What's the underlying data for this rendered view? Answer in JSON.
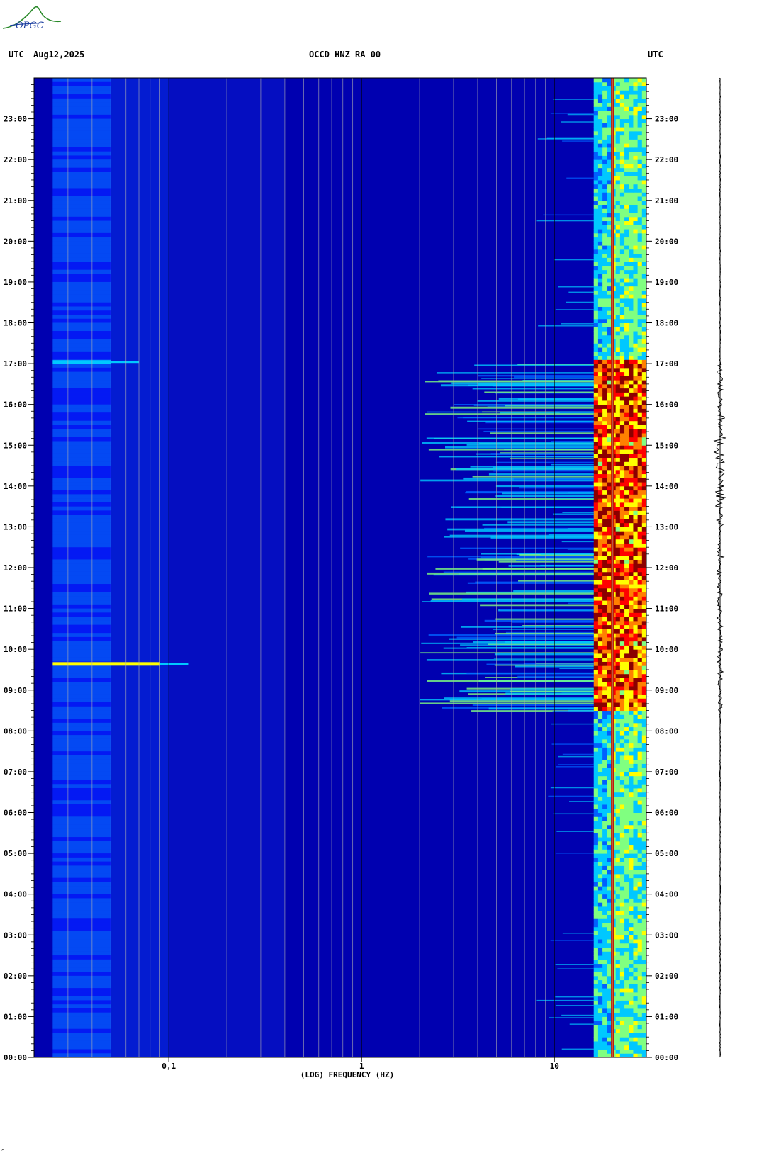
{
  "logo_text": "OPGC",
  "header": {
    "left_tz": "UTC",
    "date": "Aug12,2025",
    "station": "OCCD HNZ RA 00",
    "right_tz": "UTC"
  },
  "corner_mark": "^",
  "chart_data": {
    "type": "heatmap",
    "title": "OCCD HNZ RA 00",
    "xlabel": "(LOG) FREQUENCY (HZ)",
    "ylabel": "UTC",
    "x_scale": "log",
    "xlim": [
      0.02,
      30
    ],
    "x_ticks": [
      {
        "value": 0.1,
        "label": "0,1"
      },
      {
        "value": 1,
        "label": "1"
      },
      {
        "value": 10,
        "label": "10"
      }
    ],
    "x_minor_gridlines": [
      0.02,
      0.03,
      0.04,
      0.05,
      0.06,
      0.07,
      0.08,
      0.09,
      0.2,
      0.3,
      0.4,
      0.5,
      0.6,
      0.7,
      0.8,
      0.9,
      2,
      3,
      4,
      5,
      6,
      7,
      8,
      9,
      20
    ],
    "ylim_hours": [
      0,
      24
    ],
    "y_ticks": [
      "00:00",
      "01:00",
      "02:00",
      "03:00",
      "04:00",
      "05:00",
      "06:00",
      "07:00",
      "08:00",
      "09:00",
      "10:00",
      "11:00",
      "12:00",
      "13:00",
      "14:00",
      "15:00",
      "16:00",
      "17:00",
      "18:00",
      "19:00",
      "20:00",
      "21:00",
      "22:00",
      "23:00"
    ],
    "colormap": [
      "#00008b",
      "#0000ff",
      "#0060ff",
      "#00c8ff",
      "#80ff80",
      "#ffff00",
      "#ff8000",
      "#ff0000",
      "#8b0000"
    ],
    "features": [
      {
        "kind": "persistent_line",
        "freq_hz": 20,
        "color": "#c02000"
      },
      {
        "kind": "band",
        "freq_range_hz": [
          16,
          30
        ],
        "hours": [
          0,
          24
        ],
        "level": "medium"
      },
      {
        "kind": "activity",
        "freq_range_hz": [
          2,
          30
        ],
        "hours": [
          8.5,
          17.0
        ],
        "level": "high"
      },
      {
        "kind": "event",
        "freq_range_hz": [
          0.025,
          0.09
        ],
        "hour": 9.65,
        "level": "high"
      },
      {
        "kind": "event",
        "freq_range_hz": [
          0.025,
          0.05
        ],
        "hour": 17.05,
        "level": "medium"
      }
    ]
  }
}
